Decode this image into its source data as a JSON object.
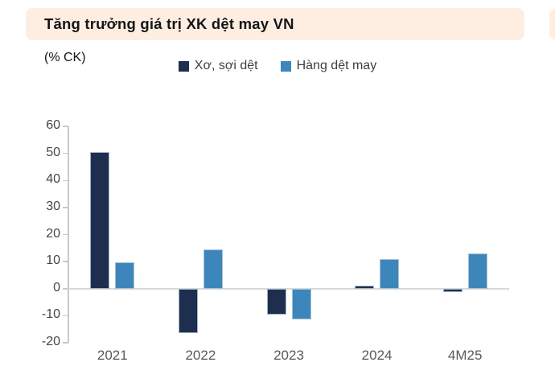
{
  "panel": {
    "title": "Tăng trưởng giá trị XK dệt may VN",
    "title_bg": "#fdeee1",
    "unit_label": "(% CK)"
  },
  "adjacent_panel": {
    "bg": "#fdeee1"
  },
  "legend": {
    "items": [
      {
        "label": "Xơ, sợi dệt",
        "color": "#1d2e4e"
      },
      {
        "label": "Hàng dệt may",
        "color": "#3d86bb"
      }
    ]
  },
  "chart_data": {
    "type": "bar",
    "title": "Tăng trưởng giá trị XK dệt may VN",
    "ylabel": "(% CK)",
    "categories": [
      "2021",
      "2022",
      "2023",
      "2024",
      "4M25"
    ],
    "series": [
      {
        "name": "Xơ, sợi dệt",
        "color": "#1d2e4e",
        "values": [
          50.5,
          -16.5,
          -9.5,
          1.2,
          -1.3
        ]
      },
      {
        "name": "Hàng dệt may",
        "color": "#3d86bb",
        "values": [
          9.7,
          14.5,
          -11.5,
          11.0,
          13.0
        ]
      }
    ],
    "ylim": [
      -20,
      60
    ],
    "yticks": [
      60,
      50,
      40,
      30,
      20,
      10,
      0,
      -10,
      -20
    ],
    "grid": false,
    "legend_position": "top"
  }
}
